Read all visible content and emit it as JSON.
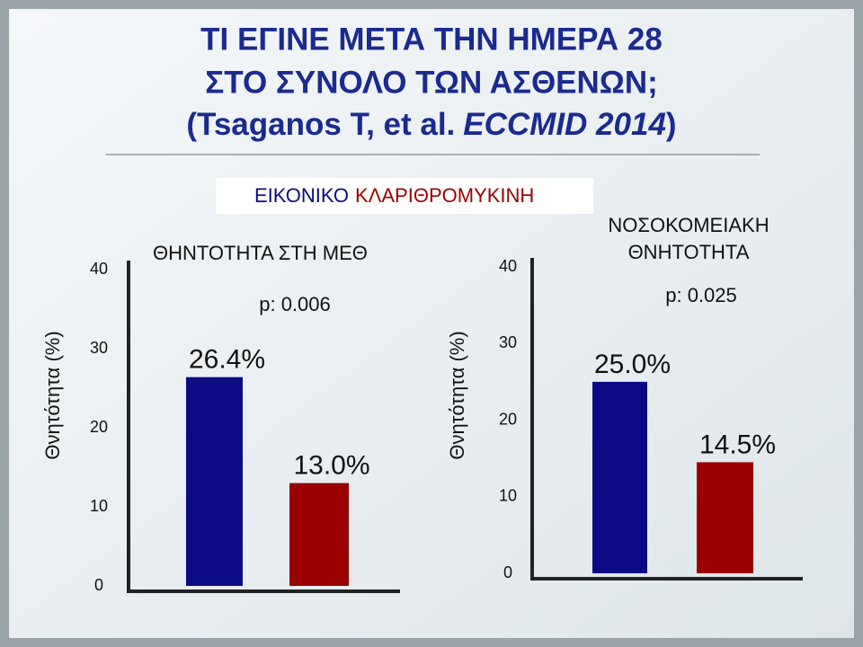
{
  "header": {
    "title_lines": [
      "ΤΙ ΕΓΙΝΕ ΜΕΤΑ ΤΗΝ ΗΜΕΡΑ 28",
      "ΣΤΟ ΣΥΝΟΛΟ ΤΩΝ ΑΣΘΕΝΩΝ;"
    ],
    "citation": [
      "(Tsaganos T, et al.",
      "ECCMID 2014",
      ")"
    ]
  },
  "legend": [
    {
      "name": "ΕΙΚΟΝΙΚΟ",
      "color": "#0b0b84"
    },
    {
      "name": "ΚΛΑΡΙΘΡΟΜΥΚΙΝΗ",
      "color": "#9a0000"
    }
  ],
  "chart_data": [
    {
      "type": "bar",
      "title": [
        "ΘΗΝΤΟΤΗΤΑ ΣΤΗ ΜΕΘ"
      ],
      "subtitle": "p: 0.006",
      "y_label": "Θνητότητα (%)",
      "categories": [
        null,
        null
      ],
      "values": [
        26.4,
        13.0
      ],
      "value_labels": [
        "26.4%",
        "13.0%"
      ],
      "colors": [
        "#0b0b84",
        "#9a0000"
      ],
      "ylim": [
        0,
        40
      ],
      "yticks": [
        0,
        10,
        20,
        30,
        40
      ]
    },
    {
      "type": "bar",
      "title": [
        "ΝΟΣΟΚΟΜΕΙΑΚΗ",
        "ΘΝΗΤΟΤΗΤΑ"
      ],
      "subtitle": "p: 0.025",
      "y_label": "Θνητότητα (%)",
      "categories": [
        null,
        null
      ],
      "values": [
        25.0,
        14.5
      ],
      "value_labels": [
        "25.0%",
        "14.5%"
      ],
      "colors": [
        "#0b0b84",
        "#9a0000"
      ],
      "ylim": [
        0,
        40
      ],
      "yticks": [
        0,
        10,
        20,
        30,
        40
      ]
    }
  ]
}
